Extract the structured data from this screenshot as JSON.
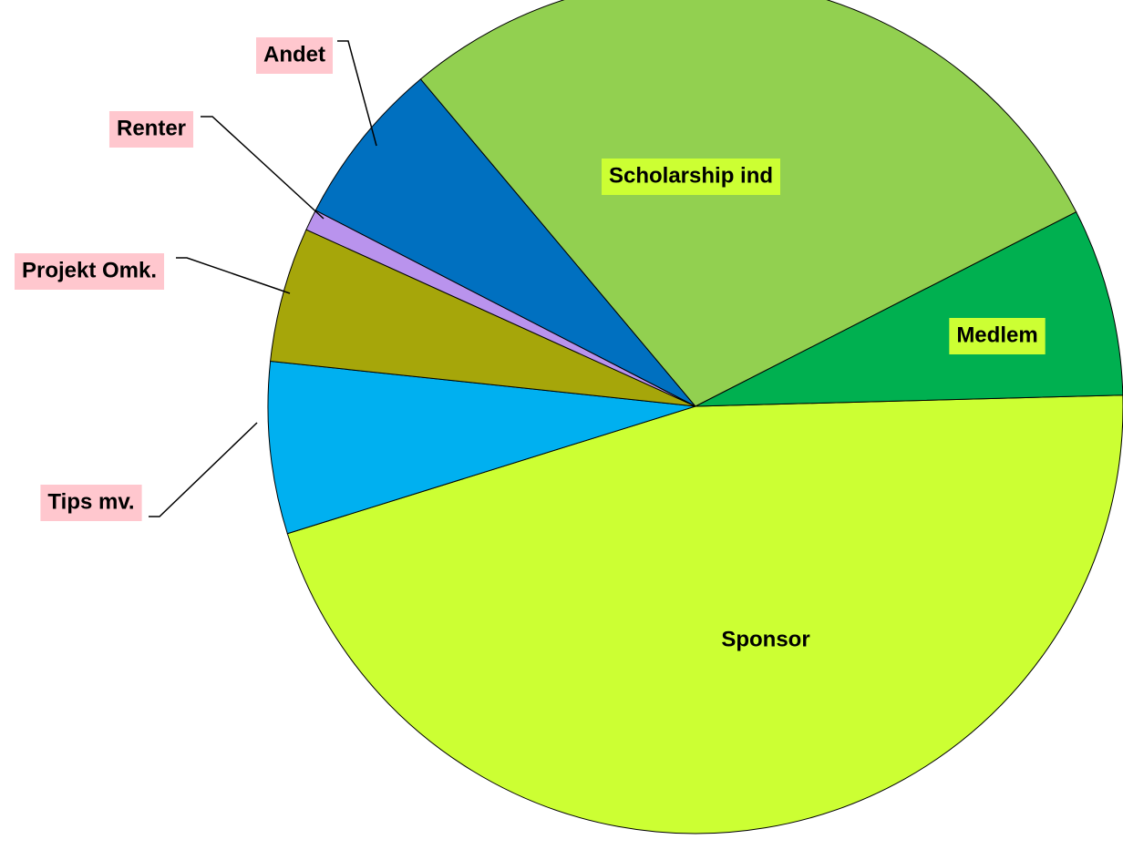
{
  "chart_data": {
    "type": "pie",
    "categories": [
      "Sponsor",
      "Tips mv.",
      "Projekt Omk.",
      "Renter",
      "Andet",
      "Scholarship ind",
      "Medlem"
    ],
    "values": [
      45.6,
      6.5,
      5.1,
      0.8,
      6.3,
      28.6,
      7.1
    ],
    "colors": [
      "#ccff33",
      "#00b0f0",
      "#a6a60a",
      "#b993ed",
      "#0070c0",
      "#92d050",
      "#00b050"
    ]
  }
}
